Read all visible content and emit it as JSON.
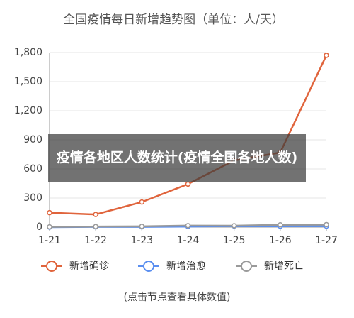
{
  "chart_data": {
    "type": "line",
    "title": "全国疫情每日新增趋势图（单位：人/天）",
    "categories": [
      "1-21",
      "1-22",
      "1-23",
      "1-24",
      "1-25",
      "1-26",
      "1-27"
    ],
    "series": [
      {
        "name": "新增确诊",
        "color": "#e0643c",
        "values": [
          149,
          131,
          259,
          444,
          688,
          769,
          1771
        ]
      },
      {
        "name": "新增治愈",
        "color": "#5b8ff0",
        "values": [
          0,
          3,
          3,
          6,
          11,
          9,
          10
        ]
      },
      {
        "name": "新增死亡",
        "color": "#9a9a9a",
        "values": [
          3,
          6,
          8,
          16,
          15,
          24,
          26
        ]
      }
    ],
    "ylim": [
      0,
      1800
    ],
    "yticks": [
      0,
      300,
      600,
      900,
      {
        "value": 1200,
        "label": "1,200"
      },
      {
        "value": 1500,
        "label": "1,500"
      },
      {
        "value": 1800,
        "label": "1,800"
      }
    ],
    "grid": true
  },
  "overlay": {
    "text": "疫情各地区人数统计(疫情全国各地人数)"
  },
  "hint": "(点击节点查看具体数值)"
}
